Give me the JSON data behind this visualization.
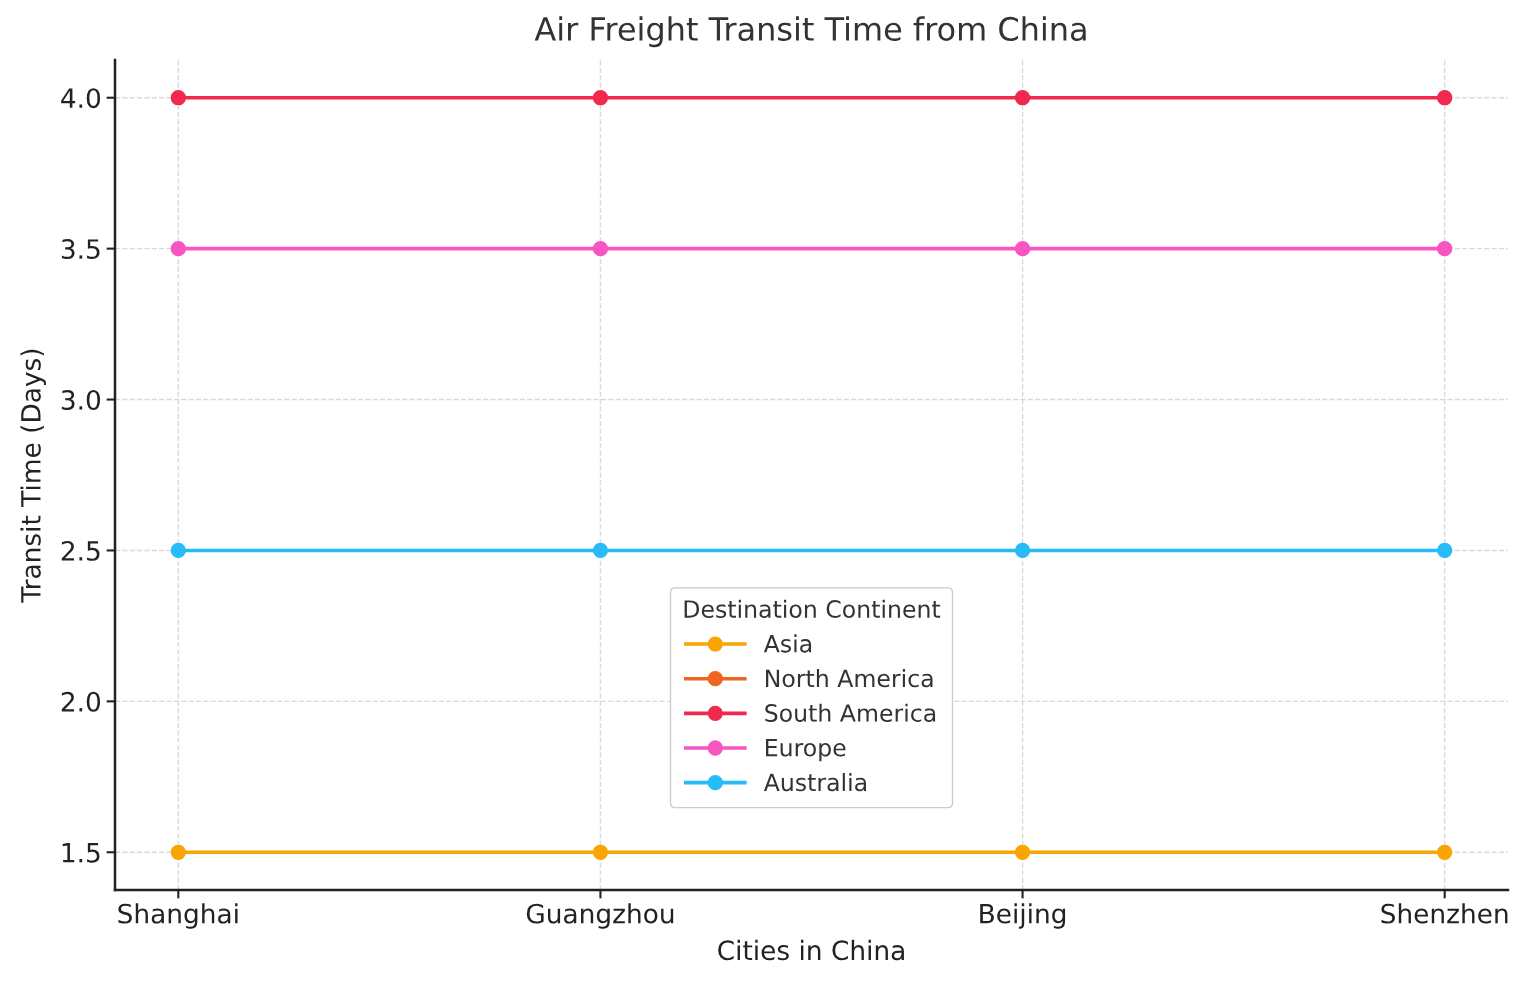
{
  "chart_data": {
    "type": "line",
    "title": "Air Freight Transit Time from China",
    "xlabel": "Cities in China",
    "ylabel": "Transit Time (Days)",
    "legend_title": "Destination Continent",
    "categories": [
      "Shanghai",
      "Guangzhou",
      "Beijing",
      "Shenzhen"
    ],
    "series": [
      {
        "name": "Asia",
        "color": "#f9a602",
        "values": [
          1.5,
          1.5,
          1.5,
          1.5
        ]
      },
      {
        "name": "North America",
        "color": "#f0651f",
        "values": [
          null,
          null,
          null,
          null
        ]
      },
      {
        "name": "South America",
        "color": "#f2294e",
        "values": [
          4.0,
          4.0,
          4.0,
          4.0
        ]
      },
      {
        "name": "Europe",
        "color": "#f955c2",
        "values": [
          3.5,
          3.5,
          3.5,
          3.5
        ]
      },
      {
        "name": "Australia",
        "color": "#27bcf8",
        "values": [
          2.5,
          2.5,
          2.5,
          2.5
        ]
      }
    ],
    "ylim": [
      1.375,
      4.125
    ],
    "yticks": [
      {
        "value": 1.5,
        "label": "1.5"
      },
      {
        "value": 2.0,
        "label": "2.0"
      },
      {
        "value": 2.5,
        "label": "2.5"
      },
      {
        "value": 3.0,
        "label": "3.0"
      },
      {
        "value": 3.5,
        "label": "3.5"
      },
      {
        "value": 4.0,
        "label": "4.0"
      }
    ],
    "grid": true,
    "legend": "bottom",
    "marker": "circle",
    "line_style": "solid"
  }
}
